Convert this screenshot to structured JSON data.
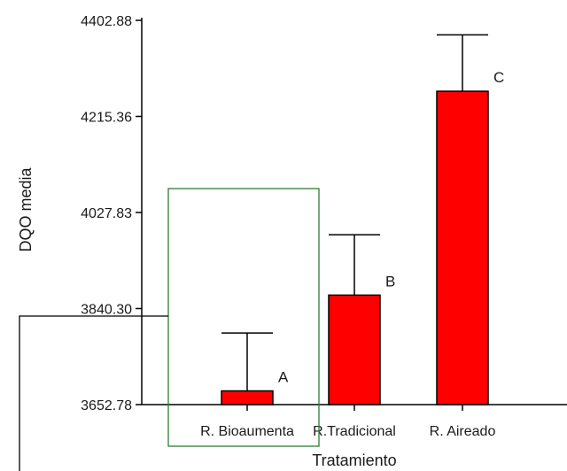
{
  "chart_data": {
    "type": "bar",
    "categories": [
      "R. Bioaumenta",
      "R.Tradicional",
      "R. Aireado"
    ],
    "values": [
      3679.5,
      3866.5,
      4264.5
    ],
    "error_upper": [
      3792.5,
      3984.5,
      4374.5
    ],
    "group_letters": [
      "A",
      "B",
      "C"
    ],
    "xlabel": "Tratamiento",
    "ylabel": "DQO media",
    "yticks": [
      "3652.78",
      "3840.30",
      "4027.83",
      "4215.36",
      "4402.88"
    ],
    "ylim": [
      3652.78,
      4402.88
    ],
    "grid": false,
    "bar_color": "#ff0000",
    "annotations": {
      "highlight_box_color": "#2e7d32",
      "callout_line_color": "#000000"
    }
  }
}
